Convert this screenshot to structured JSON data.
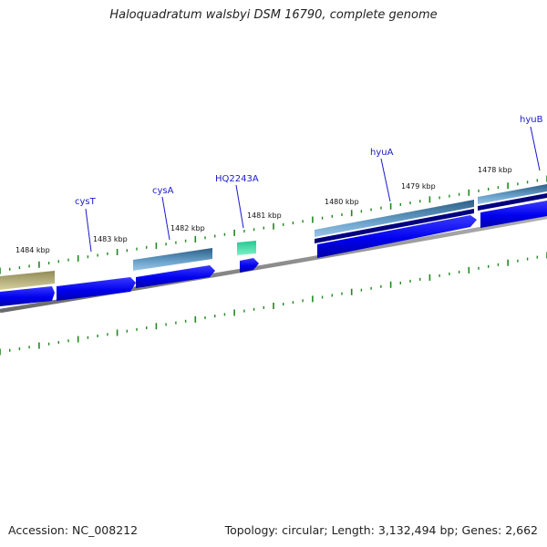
{
  "title": "Haloquadratum walsbyi DSM 16790, complete genome",
  "footer": {
    "accession": "Accession: NC_008212",
    "summary": "Topology: circular; Length: 3,132,494 bp; Genes: 2,662"
  },
  "scale_labels": [
    "1484 kbp",
    "1483 kbp",
    "1482 kbp",
    "1481 kbp",
    "1480 kbp",
    "1479 kbp",
    "1478 kbp"
  ],
  "gene_labels": [
    "cysT",
    "cysA",
    "HQ2243A",
    "hyuA",
    "hyuB"
  ],
  "colors": {
    "cds": "#0000ee",
    "cds_dark": "#000080",
    "feature_steel": "#4a7fa8",
    "feature_olive": "#b8b07a",
    "feature_teal": "#30e0a0",
    "tick": "#1e8a1e",
    "backbone": "#808080",
    "label": "#1a1acc"
  }
}
